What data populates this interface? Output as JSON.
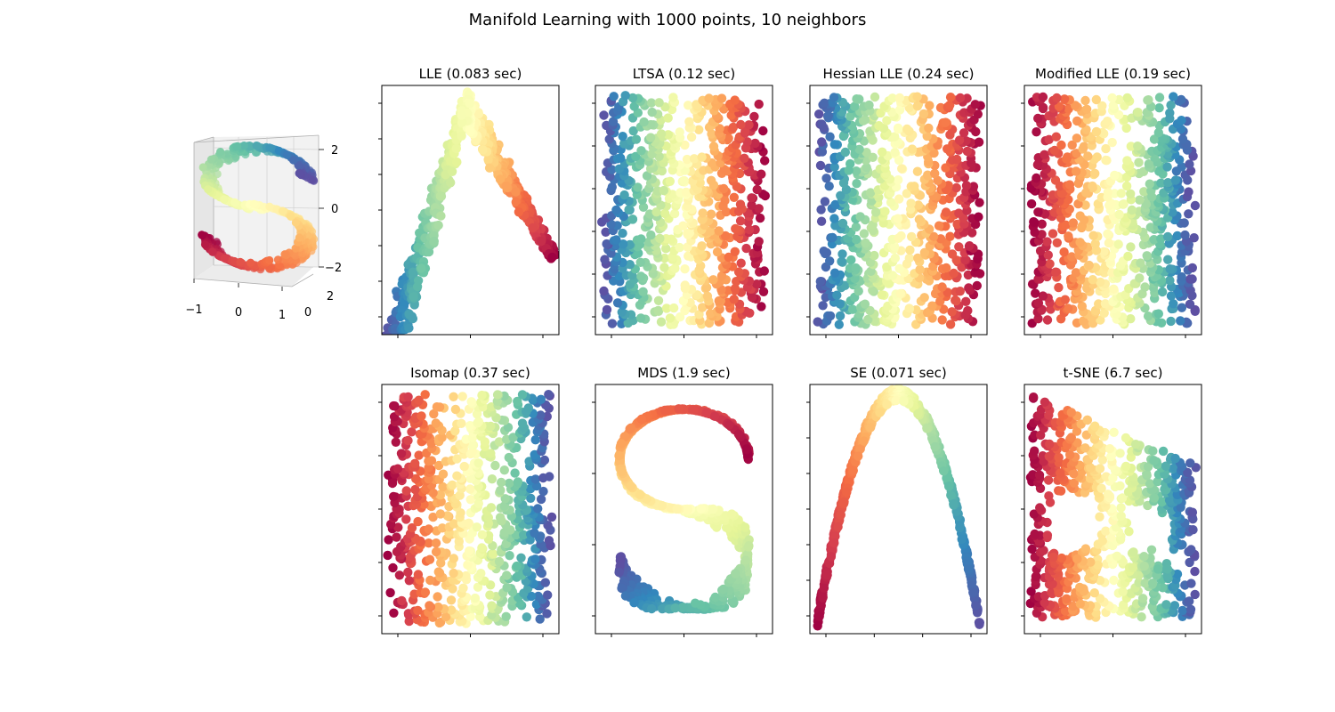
{
  "figure": {
    "title": "Manifold Learning with 1000 points, 10 neighbors"
  },
  "colormap": {
    "name": "Spectral",
    "stops": [
      "#9e0142",
      "#d53e4f",
      "#f46d43",
      "#fdae61",
      "#fee08b",
      "#ffffbf",
      "#e6f598",
      "#abdda4",
      "#66c2a5",
      "#3288bd",
      "#5e4fa2"
    ]
  },
  "chart_data": [
    {
      "type": "scatter",
      "title": "",
      "kind": "3d-s-curve",
      "points": 1000,
      "xlabel": "",
      "ylabel": "",
      "zlabel": "",
      "xlim": [
        -1,
        1
      ],
      "ylim": [
        0,
        2
      ],
      "zlim": [
        -2,
        2
      ],
      "x_ticks": [
        "−1",
        "0",
        "1"
      ],
      "y_ticks": [
        "0",
        "2"
      ],
      "z_ticks": [
        "2",
        "0",
        "−2"
      ],
      "color_by": "position along manifold"
    },
    {
      "type": "scatter",
      "title": "LLE (0.083 sec)",
      "kind": "lle-arch",
      "points": 1000,
      "x_tick_count": 3,
      "y_tick_count": 7,
      "color_by": "position along manifold"
    },
    {
      "type": "scatter",
      "title": "LTSA (0.12 sec)",
      "kind": "band-rect",
      "points": 1000,
      "x_tick_count": 3,
      "y_tick_count": 6,
      "color_by": "position along manifold"
    },
    {
      "type": "scatter",
      "title": "Hessian LLE (0.24 sec)",
      "kind": "band-rect",
      "points": 1000,
      "x_tick_count": 3,
      "y_tick_count": 6,
      "color_by": "position along manifold"
    },
    {
      "type": "scatter",
      "title": "Modified LLE (0.19 sec)",
      "kind": "band-rect-reversed",
      "points": 1000,
      "x_tick_count": 3,
      "y_tick_count": 6,
      "color_by": "position along manifold"
    },
    {
      "type": "scatter",
      "title": "Isomap (0.37 sec)",
      "kind": "band-rect-reversed",
      "points": 1000,
      "x_tick_count": 3,
      "y_tick_count": 5,
      "color_by": "position along manifold"
    },
    {
      "type": "scatter",
      "title": "MDS (1.9 sec)",
      "kind": "s-shape-2d",
      "points": 1000,
      "x_tick_count": 3,
      "y_tick_count": 4,
      "color_by": "position along manifold"
    },
    {
      "type": "scatter",
      "title": "SE (0.071 sec)",
      "kind": "parabola",
      "points": 1000,
      "x_tick_count": 4,
      "y_tick_count": 7,
      "color_by": "position along manifold"
    },
    {
      "type": "scatter",
      "title": "t-SNE (6.7 sec)",
      "kind": "tsne-sheet",
      "points": 1000,
      "x_tick_count": 3,
      "y_tick_count": 5,
      "color_by": "position along manifold"
    }
  ]
}
